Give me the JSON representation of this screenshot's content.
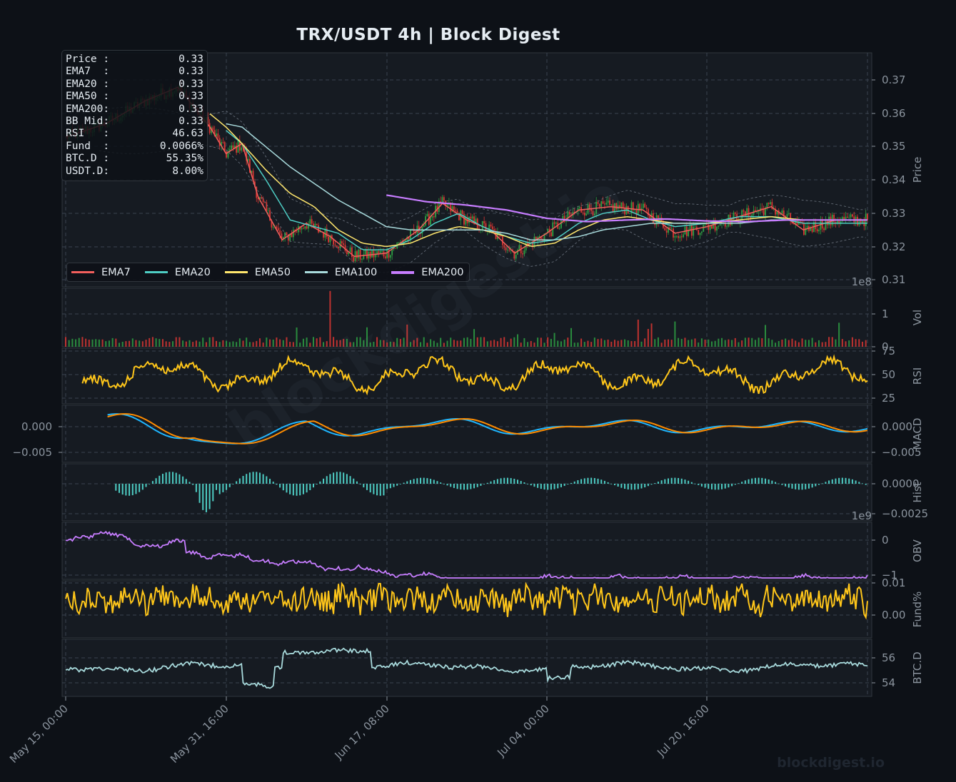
{
  "title": "TRX/USDT  4h  |  Block Digest",
  "watermark": "blockdigest.io",
  "footer_brand": "blockdigest.io",
  "info_box": [
    {
      "label": "Price :",
      "value": "0.33"
    },
    {
      "label": "EMA7  :",
      "value": "0.33"
    },
    {
      "label": "EMA20 :",
      "value": "0.33"
    },
    {
      "label": "EMA50 :",
      "value": "0.33"
    },
    {
      "label": "EMA200:",
      "value": "0.33"
    },
    {
      "label": "BB Mid:",
      "value": "0.33"
    },
    {
      "label": "RSI   :",
      "value": "46.63"
    },
    {
      "label": "Fund  :",
      "value": "0.0066%"
    },
    {
      "label": "BTC.D :",
      "value": "55.35%"
    },
    {
      "label": "USDT.D:",
      "value": "8.00%"
    }
  ],
  "legend": [
    {
      "name": "EMA7",
      "color": "#f25f5c"
    },
    {
      "name": "EMA20",
      "color": "#4ecdc4"
    },
    {
      "name": "EMA50",
      "color": "#ffe66d"
    },
    {
      "name": "EMA100",
      "color": "#a8dadc"
    },
    {
      "name": "EMA200",
      "color": "#c77dff"
    }
  ],
  "colors": {
    "background": "#0d1117",
    "panel": "#161b22",
    "grid": "#30363d",
    "up": "#2ea043",
    "down": "#da3633",
    "rsi": "#ffc61a",
    "macd": "#1fb6ff",
    "signal": "#ff8c00",
    "hist": "#4ecdc4",
    "obv": "#c77dff",
    "funding": "#ffc61a",
    "btcd": "#a8dadc"
  },
  "chart_data": {
    "type": "line",
    "x_ticks": [
      "May 15, 00:00",
      "May 31, 16:00",
      "Jun 17, 08:00",
      "Jul 04, 00:00",
      "Jul 20, 16:00"
    ],
    "panels": [
      {
        "id": "price",
        "ylabel": "Price",
        "ylim": [
          0.31,
          0.375
        ],
        "yticks": [
          "0.31",
          "0.32",
          "0.33",
          "0.34",
          "0.35",
          "0.36",
          "0.37"
        ],
        "series": [
          {
            "name": "EMA7",
            "color": "#f25f5c",
            "x": [
              0,
              0.05,
              0.1,
              0.14,
              0.18,
              0.2,
              0.22,
              0.24,
              0.27,
              0.3,
              0.33,
              0.36,
              0.4,
              0.44,
              0.47,
              0.5,
              0.53,
              0.56,
              0.6,
              0.64,
              0.68,
              0.72,
              0.76,
              0.8,
              0.84,
              0.88,
              0.92,
              0.96,
              1
            ],
            "y": [
              0.353,
              0.357,
              0.364,
              0.368,
              0.356,
              0.348,
              0.351,
              0.335,
              0.322,
              0.327,
              0.323,
              0.317,
              0.318,
              0.325,
              0.333,
              0.328,
              0.325,
              0.318,
              0.324,
              0.331,
              0.332,
              0.331,
              0.324,
              0.326,
              0.329,
              0.332,
              0.325,
              0.328,
              0.328
            ]
          },
          {
            "name": "EMA20",
            "color": "#4ecdc4",
            "x": [
              0.2,
              0.22,
              0.25,
              0.28,
              0.31,
              0.34,
              0.37,
              0.4,
              0.43,
              0.46,
              0.49,
              0.52,
              0.55,
              0.58,
              0.61,
              0.64,
              0.67,
              0.7,
              0.73,
              0.76,
              0.8,
              0.84,
              0.88,
              0.92,
              0.96,
              1
            ],
            "y": [
              0.355,
              0.351,
              0.34,
              0.328,
              0.326,
              0.324,
              0.319,
              0.319,
              0.322,
              0.327,
              0.33,
              0.326,
              0.323,
              0.321,
              0.322,
              0.327,
              0.33,
              0.331,
              0.328,
              0.326,
              0.327,
              0.329,
              0.329,
              0.327,
              0.327,
              0.327
            ]
          },
          {
            "name": "EMA50",
            "color": "#ffe66d",
            "x": [
              0.18,
              0.2,
              0.22,
              0.25,
              0.28,
              0.31,
              0.34,
              0.37,
              0.4,
              0.43,
              0.46,
              0.49,
              0.52,
              0.55,
              0.58,
              0.61,
              0.64,
              0.67,
              0.7,
              0.73,
              0.76,
              0.8,
              0.84,
              0.88,
              0.92,
              0.96,
              1
            ],
            "y": [
              0.36,
              0.356,
              0.351,
              0.343,
              0.336,
              0.332,
              0.325,
              0.321,
              0.32,
              0.321,
              0.324,
              0.326,
              0.325,
              0.323,
              0.32,
              0.321,
              0.325,
              0.328,
              0.329,
              0.328,
              0.327,
              0.327,
              0.328,
              0.329,
              0.328,
              0.328,
              0.328
            ]
          },
          {
            "name": "EMA100",
            "color": "#a8dadc",
            "x": [
              0.2,
              0.22,
              0.25,
              0.28,
              0.31,
              0.34,
              0.37,
              0.4,
              0.43,
              0.46,
              0.49,
              0.52,
              0.55,
              0.58,
              0.61,
              0.64,
              0.67,
              0.7,
              0.73,
              0.76,
              0.8,
              0.84,
              0.88,
              0.92,
              0.96,
              1
            ],
            "y": [
              0.357,
              0.356,
              0.35,
              0.344,
              0.339,
              0.334,
              0.33,
              0.326,
              0.325,
              0.325,
              0.325,
              0.325,
              0.324,
              0.322,
              0.322,
              0.323,
              0.325,
              0.326,
              0.327,
              0.327,
              0.327,
              0.327,
              0.328,
              0.328,
              0.328,
              0.328
            ]
          },
          {
            "name": "EMA200",
            "color": "#c77dff",
            "x": [
              0.4,
              0.45,
              0.5,
              0.55,
              0.6,
              0.65,
              0.7,
              0.75,
              0.8,
              0.85,
              0.9,
              0.95,
              1
            ],
            "y": [
              0.3355,
              0.3335,
              0.3325,
              0.331,
              0.3285,
              0.3275,
              0.328,
              0.3283,
              0.3277,
              0.3275,
              0.328,
              0.328,
              0.328
            ]
          }
        ]
      },
      {
        "id": "volume",
        "ylabel": "Vol",
        "sci": "1e8",
        "yticks": [
          "0",
          "1"
        ],
        "ylim": [
          0,
          1.75
        ]
      },
      {
        "id": "rsi",
        "ylabel": "RSI",
        "yticks": [
          "25",
          "50",
          "75"
        ],
        "ylim": [
          20,
          78
        ]
      },
      {
        "id": "macd",
        "ylabel": "MACD",
        "yticks": [
          "0.000",
          "−0.005"
        ],
        "yticks_left": [
          "0.000",
          "−0.005"
        ],
        "ylim": [
          -0.0067,
          0.0045
        ]
      },
      {
        "id": "hist",
        "ylabel": "Hist",
        "yticks": [
          "0.0000",
          "−0.0025"
        ],
        "ylim": [
          -0.0035,
          0.0017
        ]
      },
      {
        "id": "obv",
        "ylabel": "OBV",
        "sci": "1e9",
        "yticks": [
          "0",
          "−1"
        ],
        "ylim": [
          -1.05,
          0.55
        ]
      },
      {
        "id": "funding",
        "ylabel": "Fund%",
        "yticks": [
          "0.01",
          "0.00"
        ],
        "ylim": [
          -0.006,
          0.0105
        ]
      },
      {
        "id": "btcd",
        "ylabel": "BTC.D",
        "yticks": [
          "56",
          "54"
        ],
        "ylim": [
          53,
          58.5
        ]
      }
    ]
  }
}
